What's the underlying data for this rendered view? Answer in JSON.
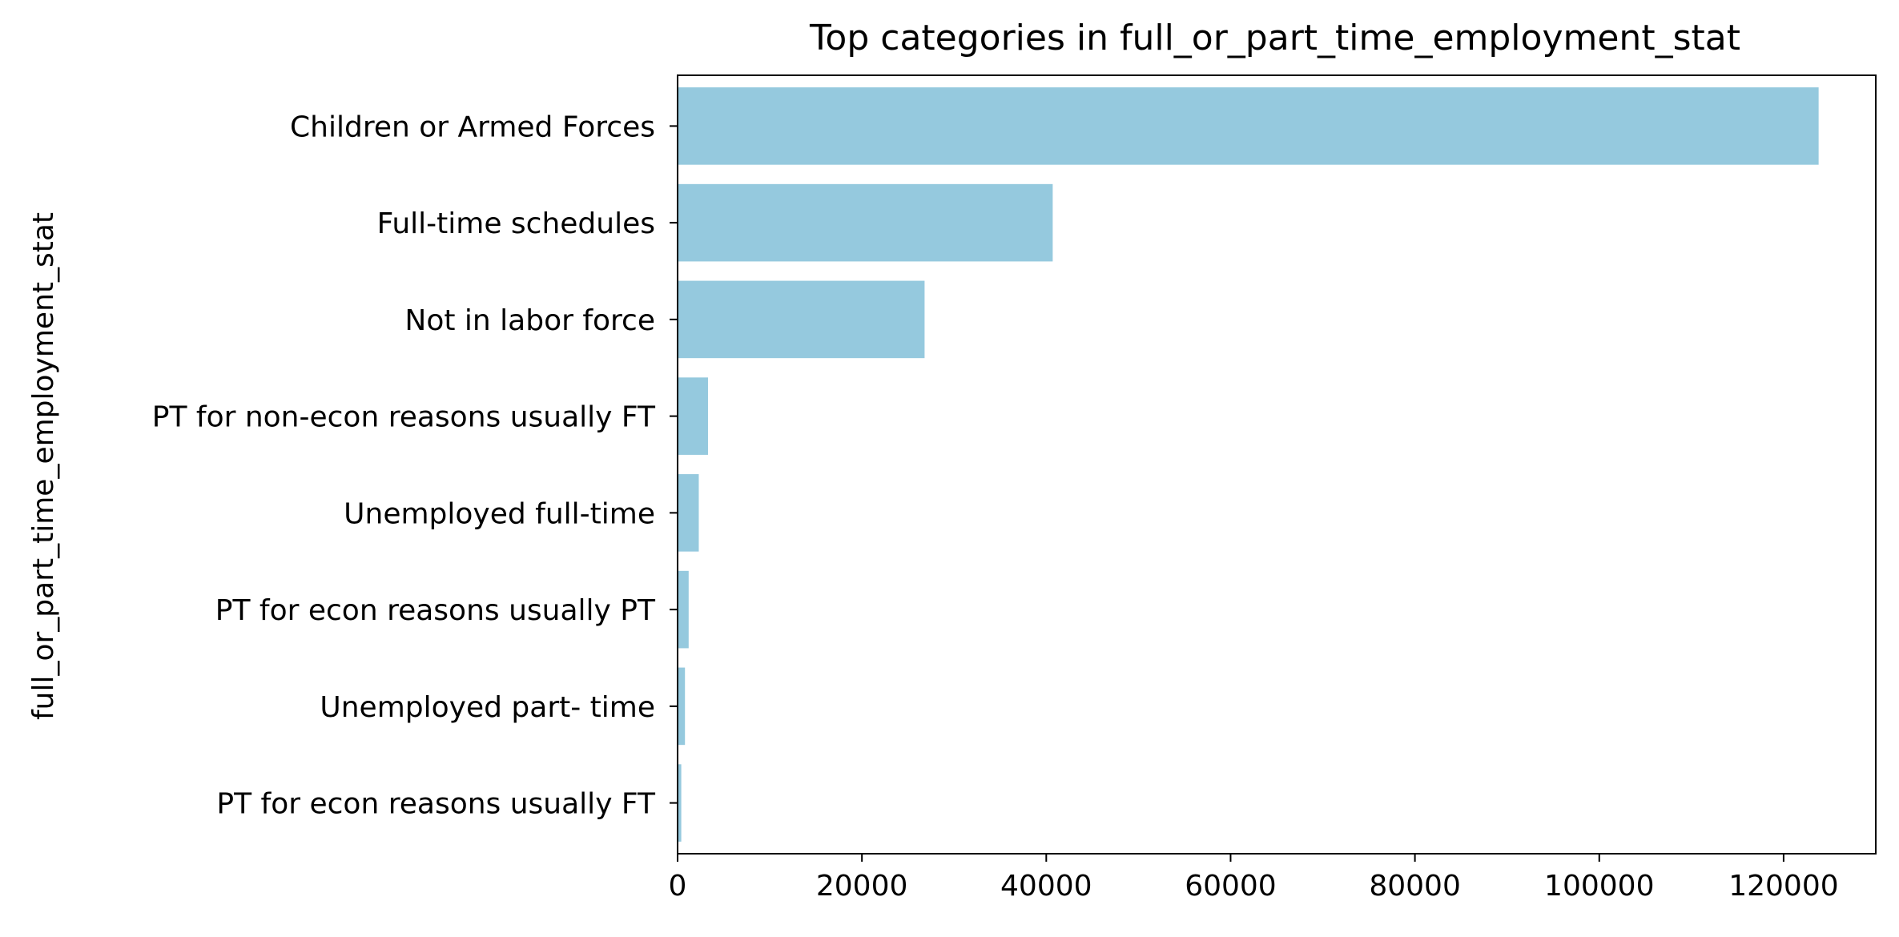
{
  "chart_data": {
    "type": "bar",
    "orientation": "horizontal",
    "title": "Top categories in full_or_part_time_employment_stat",
    "xlabel": "",
    "ylabel": "full_or_part_time_employment_stat",
    "categories": [
      "Children or Armed Forces",
      "Full-time schedules",
      "Not in labor force",
      "PT for non-econ reasons usually FT",
      "Unemployed full-time",
      "PT for econ reasons usually PT",
      "Unemployed part- time",
      "PT for econ reasons usually FT"
    ],
    "values": [
      123800,
      40700,
      26800,
      3300,
      2300,
      1200,
      800,
      400
    ],
    "xlim": [
      0,
      130000
    ],
    "xticks": [
      0,
      20000,
      40000,
      60000,
      80000,
      100000,
      120000
    ],
    "xtick_labels": [
      "0",
      "20000",
      "40000",
      "60000",
      "80000",
      "100000",
      "120000"
    ],
    "bar_color": "#95c9de",
    "grid": false,
    "legend": "none"
  }
}
